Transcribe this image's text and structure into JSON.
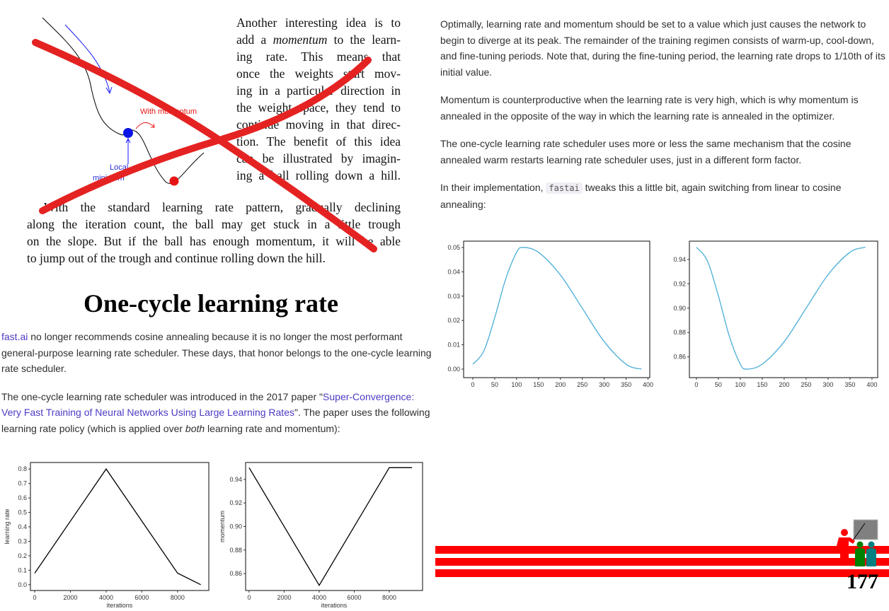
{
  "figure": {
    "with_momentum_label": "With momentum",
    "local_label_line1": "Local",
    "local_label_line2": "minimum",
    "colors": {
      "ball_local": "#0a14e6",
      "ball_global": "#e61414",
      "cross_out": "#e52222"
    }
  },
  "momentum_text": {
    "lines": [
      "Another interesting idea is to",
      [
        "add a ",
        "momentum",
        " to the learn-"
      ],
      "ing rate.   This means that",
      "once the weights start mov-",
      "ing in a particular direction in",
      "the weight space, they tend to",
      "continue moving in that direc-",
      "tion.  The benefit of this idea",
      "can be illustrated by imagin-",
      "ing a ball rolling down a hill."
    ],
    "full_lines": [
      "With the standard learning rate pattern, gradually declining",
      "along the iteration count, the ball may get stuck in a little trough",
      "on the slope. But if the ball has enough momentum, it will be able",
      "to jump out of the trough and continue rolling down the hill."
    ]
  },
  "heading": "One-cycle learning rate",
  "left_paragraphs": {
    "p1_link": "fast.ai",
    "p1_text": " no longer recommends cosine annealing because it is no longer the most performant general-purpose learning rate scheduler. These days, that honor belongs to the one-cycle learning rate scheduler.",
    "p2_text_a": "The one-cycle learning rate scheduler was introduced in the 2017 paper \"",
    "p2_link": "Super-Convergence: Very Fast Training of Neural Networks Using Large Learning Rates",
    "p2_text_b": "\". The paper uses the following learning rate policy (which is applied over ",
    "p2_em": "both",
    "p2_text_c": " learning rate and momentum):"
  },
  "right_paragraphs": {
    "p1": "Optimally, learning rate and momentum should be set to a value which just causes the network to begin to diverge at its peak. The remainder of the training regimen consists of warm-up, cool-down, and fine-tuning periods. Note that, during the fine-tuning period, the learning rate drops to 1/10th of its initial value.",
    "p2": "Momentum is counterproductive when the learning rate is very high, which is why momentum is annealed in the opposite of the way in which the learning rate is annealed in the optimizer.",
    "p3": "The one-cycle learning rate scheduler uses more or less the same mechanism that the cosine annealed warm restarts learning rate scheduler uses, just in a different form factor.",
    "p4_a": "In their implementation, ",
    "p4_code": "fastai",
    "p4_b": " tweaks this a little bit, again switching from linear to cosine annealing:"
  },
  "page_number": "177",
  "logo": {
    "colors": {
      "teacher": "#ff0000",
      "board": "#808080",
      "student1": "#008000",
      "student2": "#008080"
    }
  },
  "stripe_color": "#ff0000",
  "chart_data": [
    {
      "type": "line",
      "title": "",
      "xlabel": "iterations",
      "ylabel": "learning rate",
      "x": [
        0,
        4000,
        8000,
        9300
      ],
      "y": [
        0.08,
        0.8,
        0.08,
        0.0
      ],
      "xticks": [
        0,
        2000,
        4000,
        6000,
        8000
      ],
      "xtick_labels": [
        "0",
        "2000",
        "4000",
        "6000",
        "8000"
      ],
      "yticks": [
        0,
        0.1,
        0.2,
        0.3,
        0.4,
        0.5,
        0.6,
        0.7,
        0.8
      ],
      "ytick_labels": [
        "0.0",
        "0.1",
        "0.2",
        "0.3",
        "0.4",
        "0.5",
        "0.6",
        "0.7",
        "0.8"
      ],
      "xlim": [
        -240,
        9750
      ],
      "ylim": [
        -0.04,
        0.845
      ],
      "grid": false,
      "color": "#000000"
    },
    {
      "type": "line",
      "title": "",
      "xlabel": "iterations",
      "ylabel": "momentum",
      "x": [
        0,
        4000,
        8000,
        9300
      ],
      "y": [
        0.95,
        0.85,
        0.95,
        0.95
      ],
      "xticks": [
        0,
        2000,
        4000,
        6000,
        8000
      ],
      "xtick_labels": [
        "0",
        "2000",
        "4000",
        "6000",
        "8000"
      ],
      "yticks": [
        0.86,
        0.88,
        0.9,
        0.92,
        0.94
      ],
      "ytick_labels": [
        "0.86",
        "0.88",
        "0.90",
        "0.92",
        "0.94"
      ],
      "xlim": [
        -200,
        9900
      ],
      "ylim": [
        0.8456,
        0.9544
      ],
      "grid": false,
      "color": "#000000"
    },
    {
      "type": "line",
      "title": "",
      "xlabel": "",
      "ylabel": "",
      "x": [
        0,
        25,
        50,
        75,
        100,
        115,
        150,
        200,
        250,
        300,
        350,
        385
      ],
      "y": [
        0.002,
        0.0074,
        0.0211,
        0.037,
        0.048,
        0.05,
        0.048,
        0.0387,
        0.025,
        0.0113,
        0.002,
        0.0
      ],
      "xticks": [
        0,
        50,
        100,
        150,
        200,
        250,
        300,
        350,
        400
      ],
      "xtick_labels": [
        "0",
        "50",
        "100",
        "150",
        "200",
        "250",
        "300",
        "350",
        "400"
      ],
      "yticks": [
        0,
        0.01,
        0.02,
        0.03,
        0.04,
        0.05
      ],
      "ytick_labels": [
        "0.00",
        "0.01",
        "0.02",
        "0.03",
        "0.04",
        "0.05"
      ],
      "xlim": [
        -21,
        404
      ],
      "ylim": [
        -0.0035,
        0.0526
      ],
      "grid": false,
      "color": "#4aaed6"
    },
    {
      "type": "line",
      "title": "",
      "xlabel": "",
      "ylabel": "",
      "x": [
        0,
        25,
        50,
        75,
        100,
        115,
        150,
        200,
        250,
        300,
        350,
        385
      ],
      "y": [
        0.95,
        0.9388,
        0.9102,
        0.877,
        0.8541,
        0.85,
        0.8541,
        0.8725,
        0.9,
        0.9275,
        0.9459,
        0.95
      ],
      "xticks": [
        0,
        50,
        100,
        150,
        200,
        250,
        300,
        350,
        400
      ],
      "xtick_labels": [
        "0",
        "50",
        "100",
        "150",
        "200",
        "250",
        "300",
        "350",
        "400"
      ],
      "yticks": [
        0.86,
        0.88,
        0.9,
        0.92,
        0.94
      ],
      "ytick_labels": [
        "0.86",
        "0.88",
        "0.90",
        "0.92",
        "0.94"
      ],
      "xlim": [
        -16,
        413
      ],
      "ylim": [
        0.843,
        0.955
      ],
      "grid": false,
      "color": "#4aaed6"
    }
  ]
}
